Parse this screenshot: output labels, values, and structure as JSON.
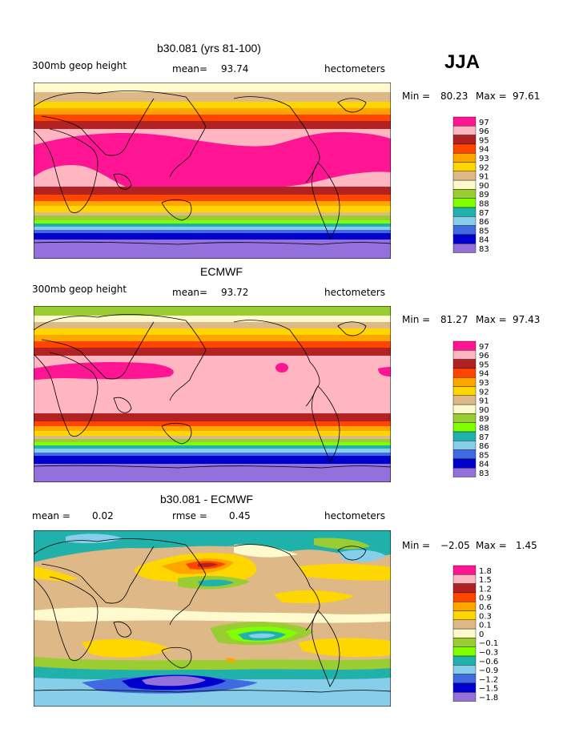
{
  "season": "JJA",
  "panels": [
    {
      "title": "b30.081 (yrs 81-100)",
      "left_label": "300mb geop height",
      "mid_label": "mean=",
      "mid_value": "93.74",
      "units": "hectometers",
      "min_label": "Min =",
      "min_value": "80.23",
      "max_label": "Max =",
      "max_value": "97.61",
      "legend": [
        "97",
        "96",
        "95",
        "94",
        "93",
        "92",
        "91",
        "90",
        "89",
        "88",
        "87",
        "86",
        "85",
        "84",
        "83"
      ]
    },
    {
      "title": "ECMWF",
      "left_label": "300mb geop height",
      "mid_label": "mean=",
      "mid_value": "93.72",
      "units": "hectometers",
      "min_label": "Min =",
      "min_value": "81.27",
      "max_label": "Max =",
      "max_value": "97.43",
      "legend": [
        "97",
        "96",
        "95",
        "94",
        "93",
        "92",
        "91",
        "90",
        "89",
        "88",
        "87",
        "86",
        "85",
        "84",
        "83"
      ]
    },
    {
      "title": "b30.081 - ECMWF",
      "left_label": "mean =",
      "left_value": "0.02",
      "mid_label": "rmse =",
      "mid_value": "0.45",
      "units": "hectometers",
      "min_label": "Min =",
      "min_value": "−2.05",
      "max_label": "Max =",
      "max_value": "1.45",
      "legend": [
        "1.8",
        "1.5",
        "1.2",
        "0.9",
        "0.6",
        "0.3",
        "0.1",
        "0",
        "−0.1",
        "−0.3",
        "−0.6",
        "−0.9",
        "−1.2",
        "−1.5",
        "−1.8"
      ]
    }
  ],
  "chart_data": [
    {
      "type": "heatmap",
      "title": "b30.081 (yrs 81-100)",
      "variable": "300mb geop height",
      "units": "hectometers",
      "mean": 93.74,
      "min": 80.23,
      "max": 97.61,
      "contour_levels": [
        83,
        84,
        85,
        86,
        87,
        88,
        89,
        90,
        91,
        92,
        93,
        94,
        95,
        96,
        97
      ],
      "colors": [
        "#9370db",
        "#0000cd",
        "#4169e1",
        "#87ceeb",
        "#20b2aa",
        "#7fff00",
        "#9acd32",
        "#fffacd",
        "#deb887",
        "#ffd700",
        "#ffa500",
        "#ff4500",
        "#b22222",
        "#ffb6c1",
        "#ff1493"
      ]
    },
    {
      "type": "heatmap",
      "title": "ECMWF",
      "variable": "300mb geop height",
      "units": "hectometers",
      "mean": 93.72,
      "min": 81.27,
      "max": 97.43,
      "contour_levels": [
        83,
        84,
        85,
        86,
        87,
        88,
        89,
        90,
        91,
        92,
        93,
        94,
        95,
        96,
        97
      ],
      "colors": [
        "#9370db",
        "#0000cd",
        "#4169e1",
        "#87ceeb",
        "#20b2aa",
        "#7fff00",
        "#9acd32",
        "#fffacd",
        "#deb887",
        "#ffd700",
        "#ffa500",
        "#ff4500",
        "#b22222",
        "#ffb6c1",
        "#ff1493"
      ]
    },
    {
      "type": "heatmap",
      "title": "b30.081 - ECMWF",
      "units": "hectometers",
      "mean": 0.02,
      "rmse": 0.45,
      "min": -2.05,
      "max": 1.45,
      "contour_levels": [
        -1.8,
        -1.5,
        -1.2,
        -0.9,
        -0.6,
        -0.3,
        -0.1,
        0,
        0.1,
        0.3,
        0.6,
        0.9,
        1.2,
        1.5,
        1.8
      ],
      "colors": [
        "#9370db",
        "#0000cd",
        "#4169e1",
        "#87ceeb",
        "#20b2aa",
        "#7fff00",
        "#9acd32",
        "#fffacd",
        "#deb887",
        "#ffd700",
        "#ffa500",
        "#ff4500",
        "#b22222",
        "#ffb6c1",
        "#ff1493"
      ]
    }
  ]
}
